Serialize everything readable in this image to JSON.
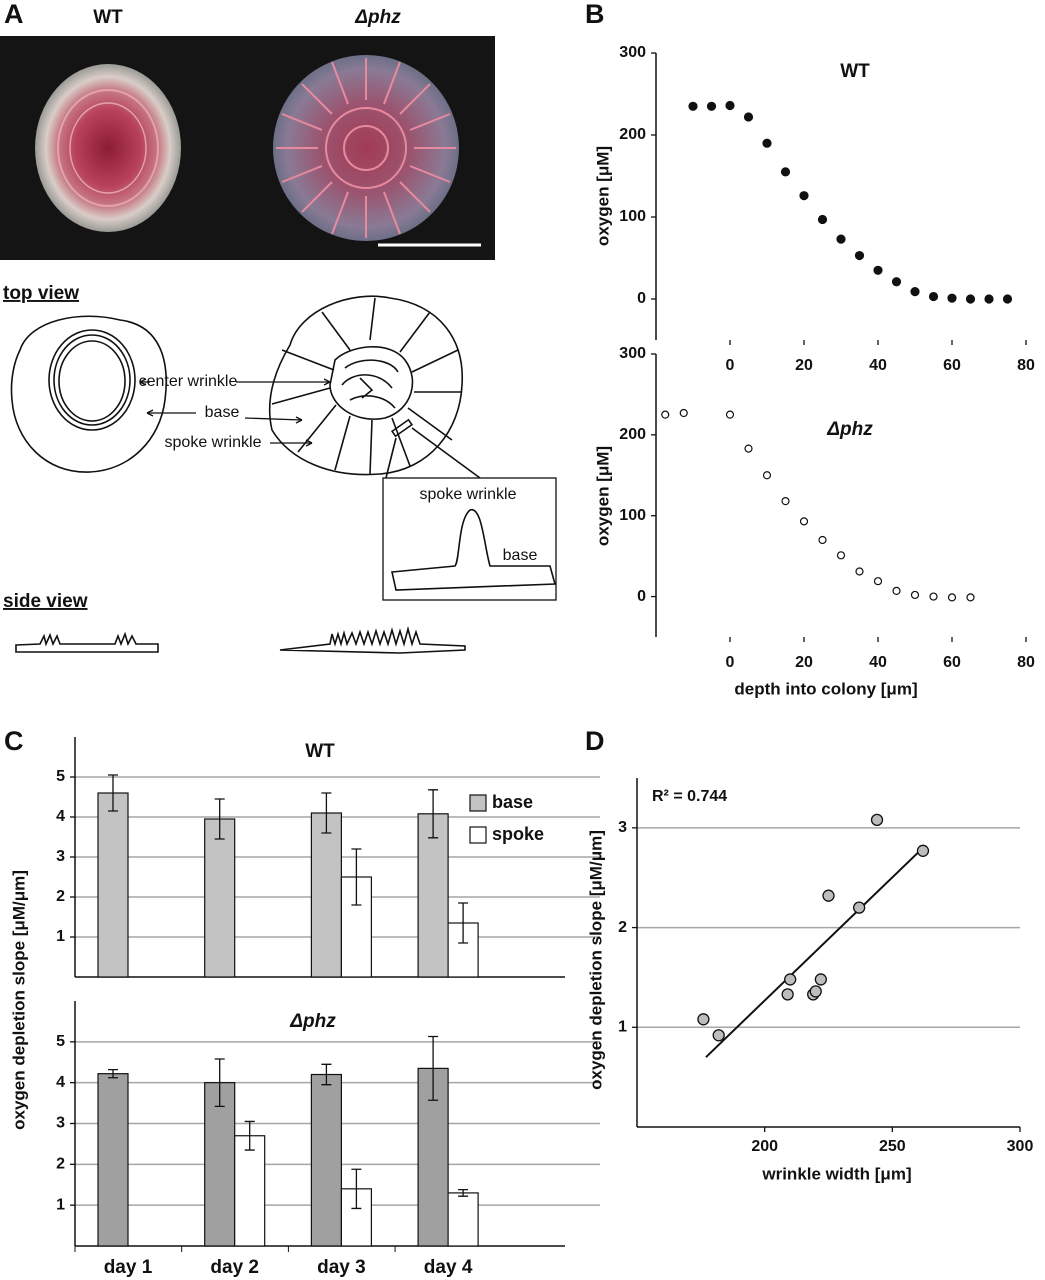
{
  "panel_labels": [
    "A",
    "B",
    "C",
    "D"
  ],
  "panel_a": {
    "photo_labels": [
      "WT",
      "Δphz"
    ],
    "top_view": "top view",
    "side_view": "side view",
    "annotations": [
      "center wrinkle",
      "base",
      "spoke wrinkle"
    ],
    "inset_labels": [
      "spoke wrinkle",
      "base"
    ]
  },
  "chart_data": [
    {
      "type": "scatter",
      "title": "WT",
      "ylabel": "oxygen [μM]",
      "x": [
        -10,
        -5,
        0,
        5,
        10,
        15,
        20,
        25,
        30,
        35,
        40,
        45,
        50,
        55,
        60,
        65,
        70,
        75
      ],
      "values": [
        235,
        235,
        236,
        222,
        190,
        155,
        126,
        97,
        73,
        53,
        35,
        21,
        9,
        3,
        1,
        0,
        0,
        0
      ],
      "color": "#111111",
      "filled": true,
      "xlim": [
        -20,
        80
      ],
      "xticks": [
        0,
        20,
        40,
        60,
        80
      ],
      "ylim": [
        -50,
        300
      ],
      "yticks": [
        0,
        100,
        200,
        300
      ],
      "grid": false
    },
    {
      "type": "scatter",
      "title": "Δphz",
      "ylabel": "oxygen [μM]",
      "xlabel": "depth into colony [μm]",
      "x": [
        -17.5,
        -12.5,
        0,
        5,
        10,
        15,
        20,
        25,
        30,
        35,
        40,
        45,
        50,
        55,
        60,
        65
      ],
      "values": [
        225,
        227,
        225,
        183,
        150,
        118,
        93,
        70,
        51,
        31,
        19,
        7,
        2,
        0,
        -1,
        -1
      ],
      "color": "#111111",
      "filled": false,
      "xlim": [
        -20,
        80
      ],
      "xticks": [
        0,
        20,
        40,
        60,
        80
      ],
      "ylim": [
        -50,
        300
      ],
      "yticks": [
        0,
        100,
        200,
        300
      ],
      "grid": false
    },
    {
      "type": "bar",
      "title": "WT",
      "ylabel": "oxygen depletion slope [μM/μm]",
      "series": [
        {
          "name": "base",
          "color": "#c3c3c3",
          "values": [
            4.6,
            3.95,
            4.1,
            4.08
          ],
          "errors": [
            0.45,
            0.5,
            0.5,
            0.6
          ]
        },
        {
          "name": "spoke",
          "color": "#ffffff",
          "values": [
            null,
            null,
            2.5,
            1.35
          ],
          "errors": [
            null,
            null,
            0.7,
            0.5
          ]
        }
      ],
      "legend": "upper right",
      "ylim": [
        0,
        6
      ],
      "yticks": [
        1,
        2,
        3,
        4,
        5
      ],
      "grid": true
    },
    {
      "type": "bar",
      "title": "Δphz",
      "categories": [
        "day 1",
        "day 2",
        "day 3",
        "day 4"
      ],
      "series": [
        {
          "name": "base",
          "color": "#a0a0a0",
          "values": [
            4.22,
            4.0,
            4.2,
            4.35
          ],
          "errors": [
            0.1,
            0.58,
            0.25,
            0.78
          ]
        },
        {
          "name": "spoke",
          "color": "#ffffff",
          "values": [
            null,
            2.7,
            1.4,
            1.3
          ],
          "errors": [
            null,
            0.35,
            0.48,
            0.08
          ]
        }
      ],
      "ylim": [
        0,
        6
      ],
      "yticks": [
        1,
        2,
        3,
        4,
        5
      ],
      "grid": true
    },
    {
      "type": "scatter",
      "annotation": "R² = 0.744",
      "xlabel": "wrinkle width [μm]",
      "ylabel": "oxygen depletion slope [μM/μm]",
      "x": [
        176,
        182,
        209,
        210,
        219,
        220,
        222,
        225,
        237,
        244,
        262
      ],
      "values": [
        1.08,
        0.92,
        1.33,
        1.48,
        1.33,
        1.36,
        1.48,
        2.32,
        2.2,
        3.08,
        2.77
      ],
      "color": "#bdbdbd",
      "filled": true,
      "trendline": {
        "x": [
          177,
          262
        ],
        "y": [
          0.7,
          2.8
        ]
      },
      "xlim": [
        150,
        300
      ],
      "xticks": [
        200,
        250,
        300
      ],
      "ylim": [
        0,
        3.5
      ],
      "yticks": [
        1,
        2,
        3
      ],
      "grid": true
    }
  ]
}
